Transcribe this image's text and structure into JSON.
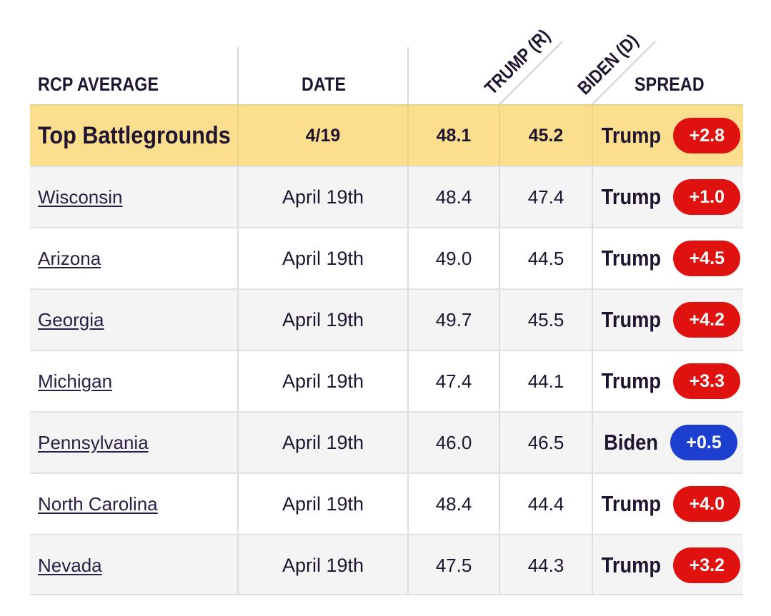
{
  "header": {
    "col_state": "RCP AVERAGE",
    "col_date": "DATE",
    "col_trump": "TRUMP (R)",
    "col_biden": "BIDEN (D)",
    "col_spread": "SPREAD"
  },
  "top": {
    "name": "Top Battlegrounds",
    "date": "4/19",
    "trump": "48.1",
    "biden": "45.2",
    "leader": "Trump",
    "margin": "+2.8"
  },
  "rows": [
    {
      "state": "Wisconsin",
      "date": "April 19th",
      "trump": "48.4",
      "biden": "47.4",
      "leader": "Trump",
      "margin": "+1.0"
    },
    {
      "state": "Arizona",
      "date": "April 19th",
      "trump": "49.0",
      "biden": "44.5",
      "leader": "Trump",
      "margin": "+4.5"
    },
    {
      "state": "Georgia",
      "date": "April 19th",
      "trump": "49.7",
      "biden": "45.5",
      "leader": "Trump",
      "margin": "+4.2"
    },
    {
      "state": "Michigan",
      "date": "April 19th",
      "trump": "47.4",
      "biden": "44.1",
      "leader": "Trump",
      "margin": "+3.3"
    },
    {
      "state": "Pennsylvania",
      "date": "April 19th",
      "trump": "46.0",
      "biden": "46.5",
      "leader": "Biden",
      "margin": "+0.5"
    },
    {
      "state": "North Carolina",
      "date": "April 19th",
      "trump": "48.4",
      "biden": "44.4",
      "leader": "Trump",
      "margin": "+4.0"
    },
    {
      "state": "Nevada",
      "date": "April 19th",
      "trump": "47.5",
      "biden": "44.3",
      "leader": "Trump",
      "margin": "+3.2"
    }
  ],
  "colors": {
    "trump": "#e0120f",
    "biden": "#1d3fcf",
    "highlight": "#fbdf8f"
  }
}
